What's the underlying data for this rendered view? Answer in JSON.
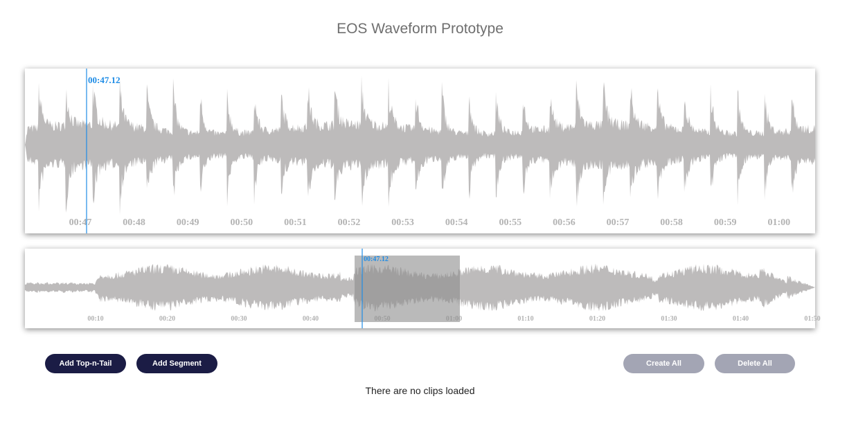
{
  "page": {
    "title": "EOS Waveform Prototype"
  },
  "zoom_view": {
    "cursor_time": "00:47.12",
    "ticks": [
      "00:47",
      "00:48",
      "00:49",
      "00:50",
      "00:51",
      "00:52",
      "00:53",
      "00:54",
      "00:55",
      "00:56",
      "00:57",
      "00:58",
      "00:59",
      "01:00"
    ]
  },
  "overview": {
    "cursor_time": "00:47.12",
    "ticks": [
      "00:10",
      "00:20",
      "00:30",
      "00:40",
      "00:50",
      "01:00",
      "01:10",
      "01:20",
      "01:30",
      "01:40",
      "01:50"
    ]
  },
  "toolbar": {
    "add_top_n_tail": "Add Top-n-Tail",
    "add_segment": "Add Segment",
    "create_all": "Create All",
    "delete_all": "Delete All"
  },
  "clips": {
    "status": "There are no clips loaded"
  },
  "colors": {
    "waveform": "#bdbbbb",
    "cursor": "#1e8ce6",
    "selection": "#8c8c8c",
    "primary_button": "#1b1c45",
    "disabled_button": "#a3a5b4"
  }
}
